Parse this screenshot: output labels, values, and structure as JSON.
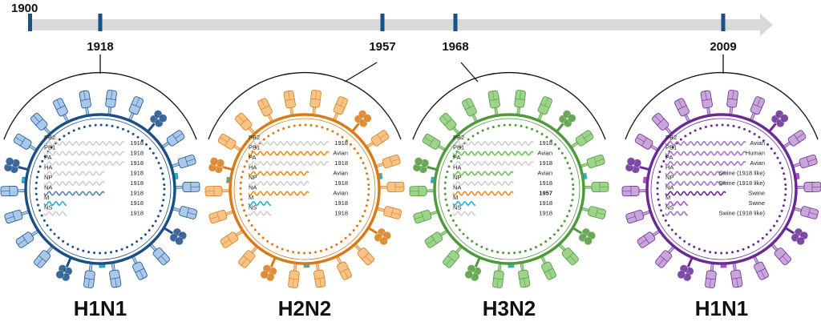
{
  "timeline": {
    "start_label": "1900",
    "events": [
      "1918",
      "1957",
      "1968",
      "2009"
    ],
    "bar_color": "#d9d9d9",
    "tick_color": "#1b4f88"
  },
  "segment_colors": {
    "human_1918": "#cfcfcf",
    "m": "#1ab8d4"
  },
  "viruses": [
    {
      "name": "H1N1",
      "year": "1918",
      "dark": "#1b4f88",
      "light": "#a9c8ea",
      "accent": "#5b84ad",
      "segments": [
        {
          "gene": "PB2",
          "origin": "1918",
          "color": "gray"
        },
        {
          "gene": "PB1",
          "origin": "1918",
          "color": "gray"
        },
        {
          "gene": "PA",
          "origin": "1918",
          "color": "gray"
        },
        {
          "gene": "HA",
          "origin": "1918",
          "color": "gray"
        },
        {
          "gene": "NP",
          "origin": "1918",
          "color": "gray"
        },
        {
          "gene": "NA",
          "origin": "1918",
          "color": "accent"
        },
        {
          "gene": "M",
          "origin": "1918",
          "color": "cyan"
        },
        {
          "gene": "NS",
          "origin": "1918",
          "color": "gray"
        }
      ]
    },
    {
      "name": "H2N2",
      "year": "1957",
      "dark": "#d97a17",
      "light": "#f7c488",
      "accent": "#f08c1e",
      "segments": [
        {
          "gene": "PB2",
          "origin": "1918",
          "color": "gray"
        },
        {
          "gene": "PB1",
          "origin": "Avian",
          "color": "accent"
        },
        {
          "gene": "PA",
          "origin": "1918",
          "color": "gray"
        },
        {
          "gene": "HA",
          "origin": "Avian",
          "color": "accent"
        },
        {
          "gene": "NP",
          "origin": "1918",
          "color": "gray"
        },
        {
          "gene": "NA",
          "origin": "Avian",
          "color": "accent"
        },
        {
          "gene": "M",
          "origin": "1918",
          "color": "cyan"
        },
        {
          "gene": "NS",
          "origin": "1918",
          "color": "gray"
        }
      ]
    },
    {
      "name": "H3N2",
      "year": "1968",
      "dark": "#4e9a3a",
      "light": "#9dd38a",
      "accent": "#6cc255",
      "segments": [
        {
          "gene": "PB2",
          "origin": "1918",
          "color": "gray"
        },
        {
          "gene": "PB1",
          "origin": "Avian",
          "color": "accent"
        },
        {
          "gene": "PA",
          "origin": "1918",
          "color": "gray"
        },
        {
          "gene": "HA",
          "origin": "Avian",
          "color": "accent"
        },
        {
          "gene": "NP",
          "origin": "1918",
          "color": "gray"
        },
        {
          "gene": "NA",
          "origin": "1957",
          "color": "orange",
          "highlight": "#f08c1e"
        },
        {
          "gene": "M",
          "origin": "1918",
          "color": "cyan"
        },
        {
          "gene": "NS",
          "origin": "1918",
          "color": "gray"
        }
      ]
    },
    {
      "name": "H1N1",
      "year": "2009",
      "dark": "#6a2a96",
      "light": "#c9a6da",
      "accent": "#a874c8",
      "segments": [
        {
          "gene": "PB2",
          "origin": "Avian",
          "color": "accent"
        },
        {
          "gene": "PB1",
          "origin": "Human",
          "color": "accent"
        },
        {
          "gene": "PA",
          "origin": "Avian",
          "color": "accent"
        },
        {
          "gene": "HA",
          "origin": "Swine (1918 like)",
          "color": "accent"
        },
        {
          "gene": "NP",
          "origin": "Swine (1918 like)",
          "color": "accent"
        },
        {
          "gene": "NA",
          "origin": "Swine",
          "color": "dark"
        },
        {
          "gene": "M",
          "origin": "Swine",
          "color": "magenta"
        },
        {
          "gene": "NS",
          "origin": "Swine (1918 like)",
          "color": "accent"
        }
      ]
    }
  ]
}
